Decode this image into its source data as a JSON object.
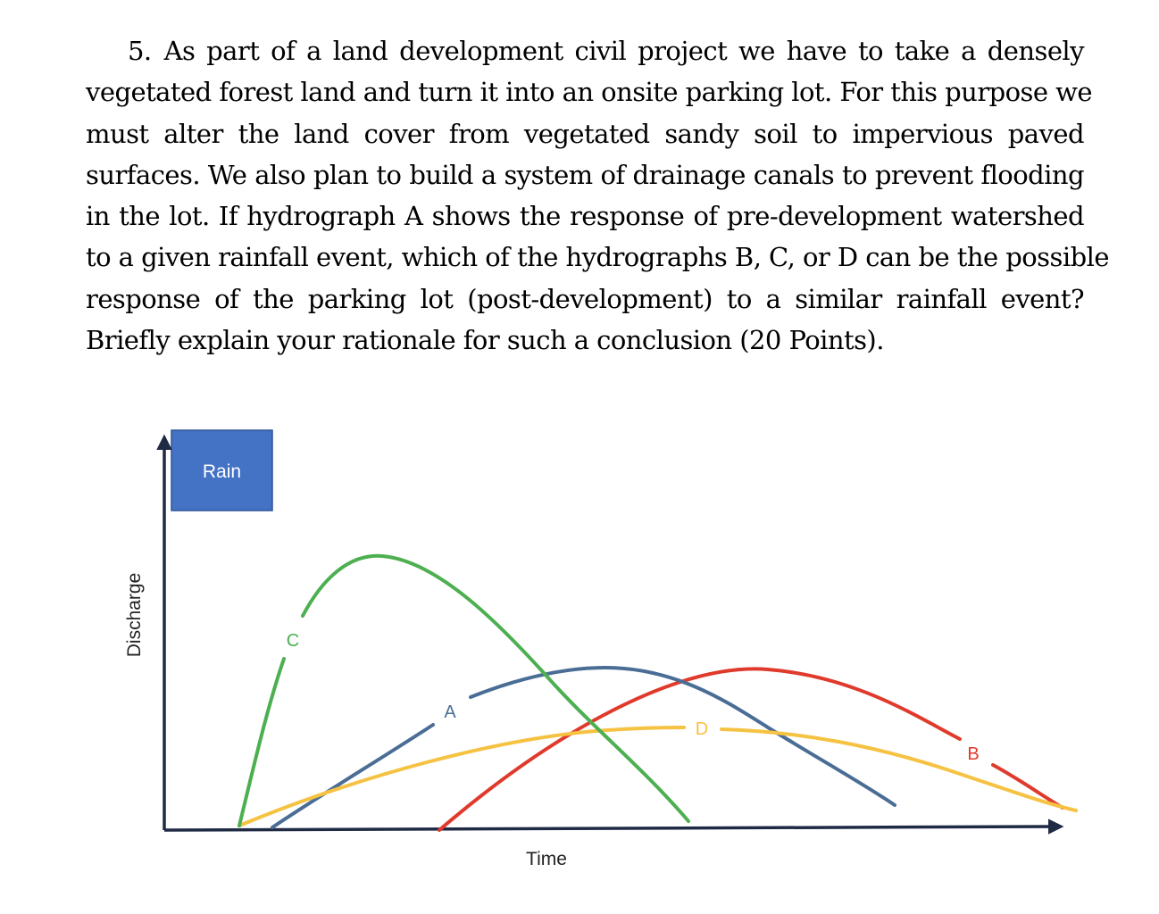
{
  "question": {
    "number": "5.",
    "lines": [
      "As part of a land development civil project we have to take a densely",
      "vegetated forest land and turn it into an onsite parking lot. For this purpose we",
      "must alter the land cover from vegetated sandy soil to impervious paved",
      "surfaces. We also plan to build a system of drainage canals to prevent flooding",
      "in the lot. If hydrograph A shows the response of pre-development watershed",
      "to a given rainfall event, which of the hydrographs B, C, or D can be the possible",
      "response of the parking lot (post-development) to a similar rainfall event?",
      "Briefly explain your rationale for such a conclusion (20 Points)."
    ]
  },
  "figure": {
    "rain_label": "Rain",
    "y_axis_label": "Discharge",
    "x_axis_label": "Time",
    "curves": {
      "A": {
        "label": "A",
        "color": "#4a6d95"
      },
      "B": {
        "label": "B",
        "color": "#e03a2c"
      },
      "C": {
        "label": "C",
        "color": "#4caf50"
      },
      "D": {
        "label": "D",
        "color": "#f5c242"
      }
    },
    "rain_color": "#4472c4",
    "axis_color": "#1f2a44"
  }
}
